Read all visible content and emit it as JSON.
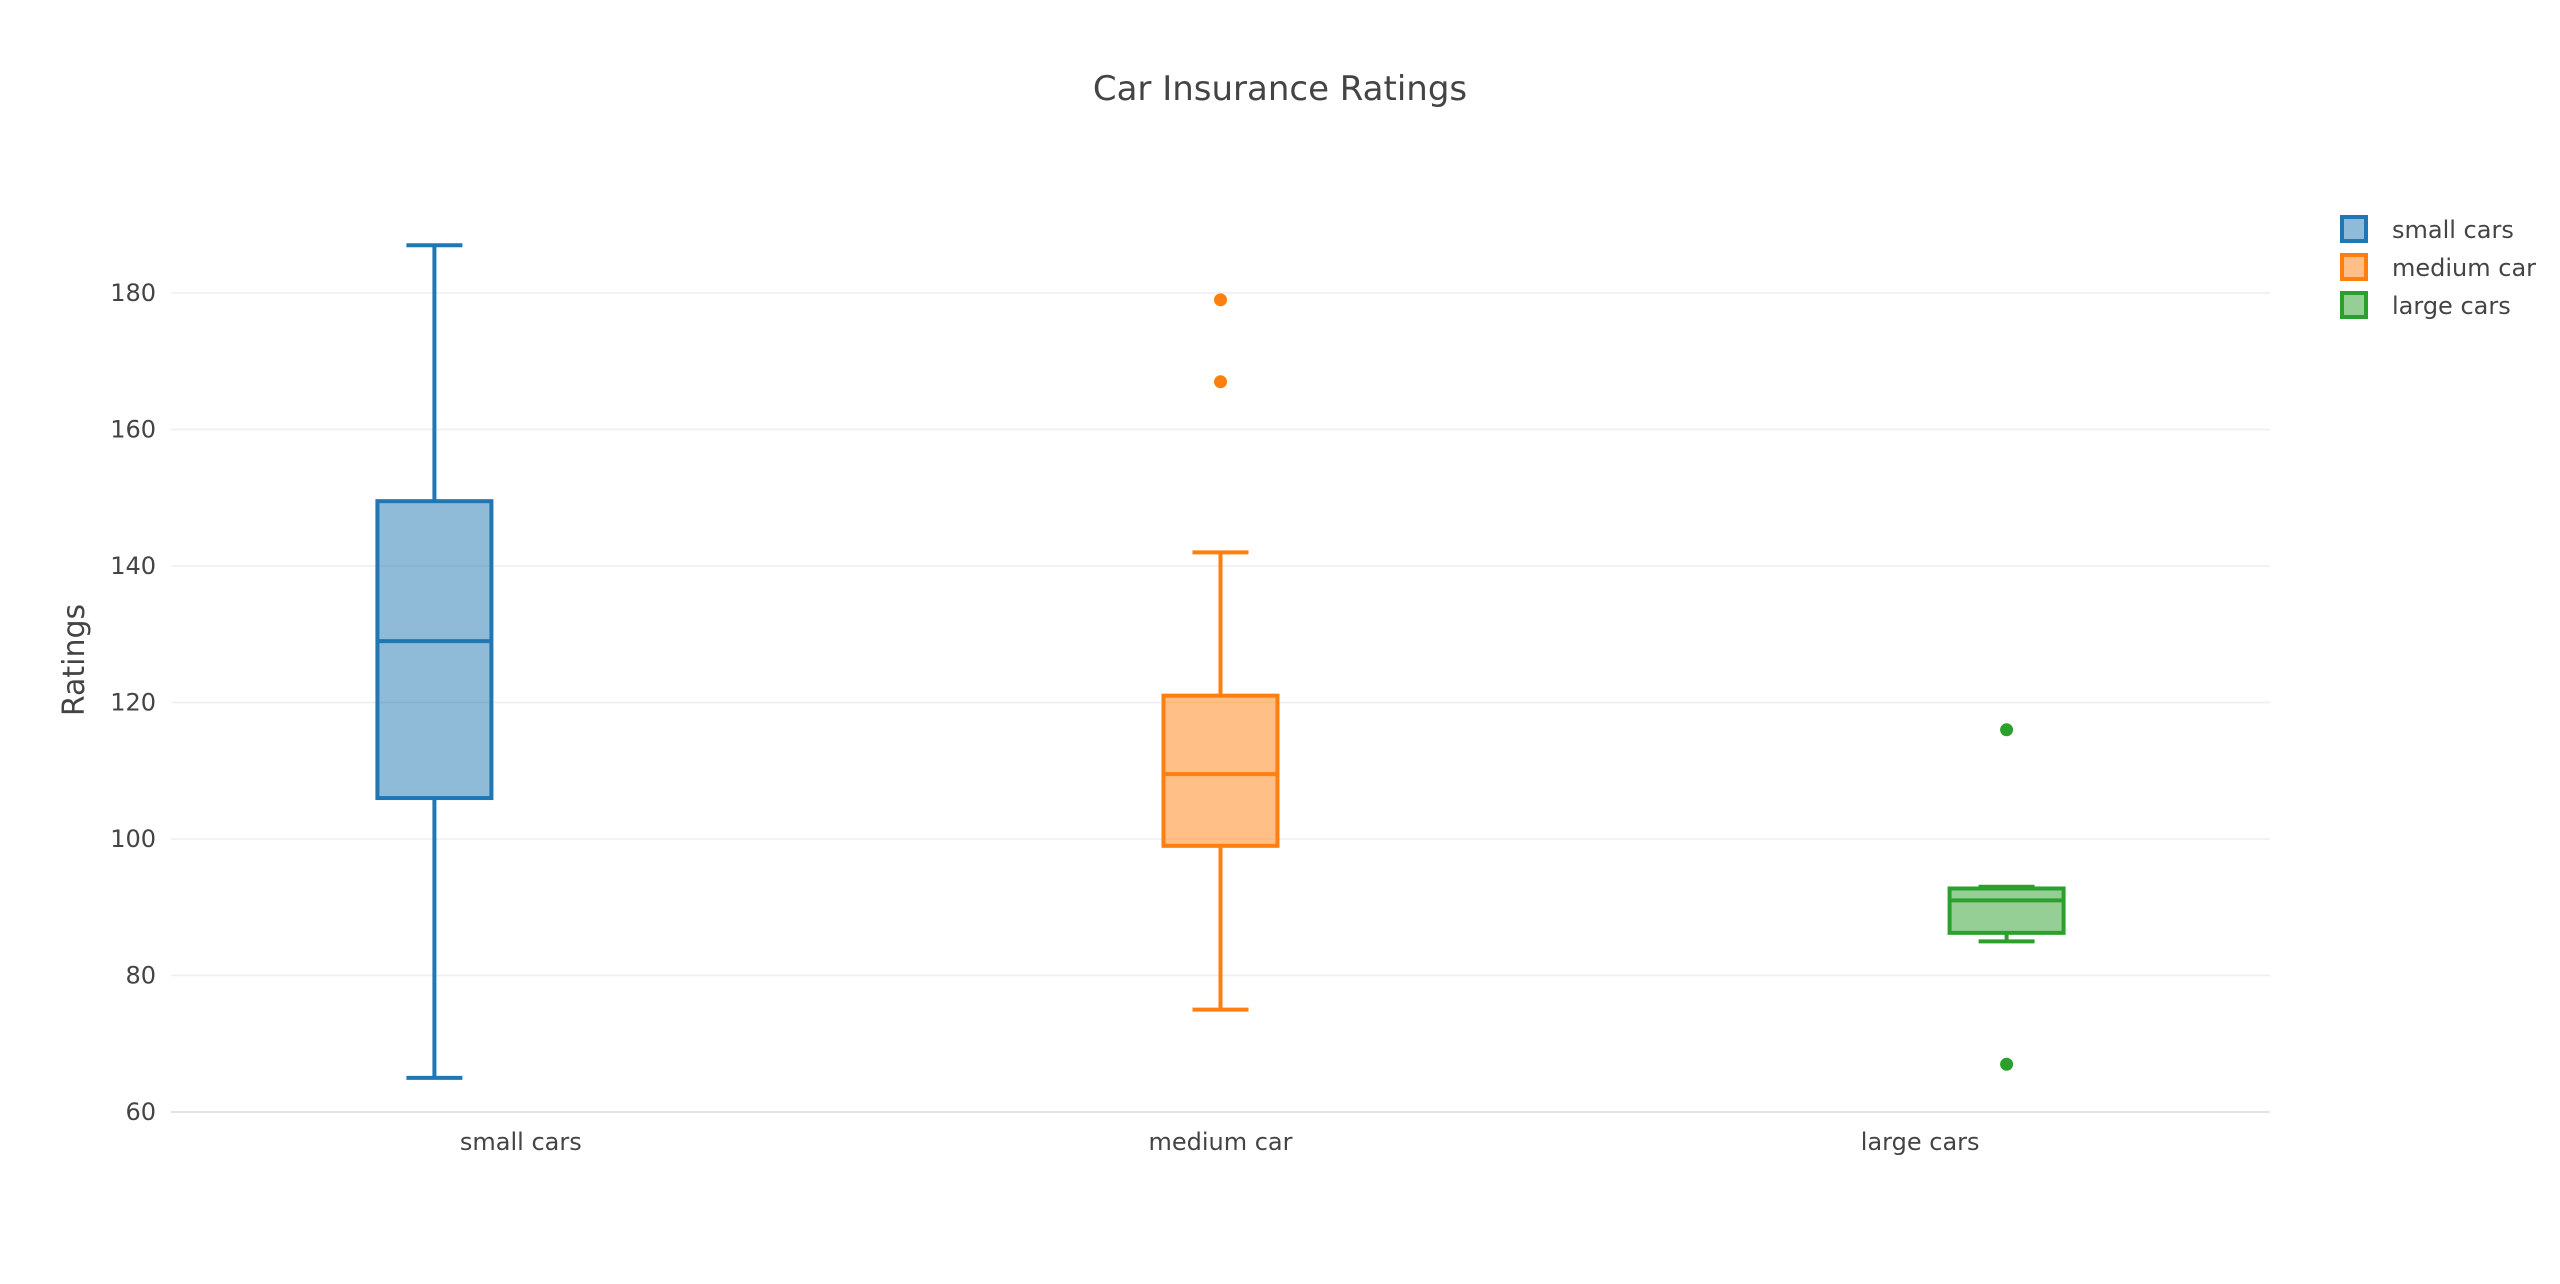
{
  "chart_data": {
    "type": "box",
    "title": "Car Insurance Ratings",
    "xlabel": "",
    "ylabel": "Ratings",
    "ylim": [
      60,
      190
    ],
    "yticks": [
      60,
      80,
      100,
      120,
      140,
      160,
      180
    ],
    "grid": true,
    "legend_position": "top-right",
    "categories": [
      "small cars",
      "medium car",
      "large cars"
    ],
    "series": [
      {
        "name": "small cars",
        "category": "small cars",
        "color": "#1f77b4",
        "fill": "rgba(31,119,180,0.5)",
        "min": 65,
        "q1": 106,
        "median": 129,
        "q3": 149.5,
        "max": 187,
        "outliers": []
      },
      {
        "name": "medium car",
        "category": "medium car",
        "color": "#ff7f0e",
        "fill": "rgba(255,127,14,0.5)",
        "min": 75,
        "q1": 99,
        "median": 109.5,
        "q3": 121,
        "max": 142,
        "outliers": [
          179,
          167
        ]
      },
      {
        "name": "large cars",
        "category": "large cars",
        "color": "#2ca02c",
        "fill": "rgba(44,160,44,0.5)",
        "min": 85,
        "q1": 86.25,
        "median": 91,
        "q3": 92.75,
        "max": 93,
        "outliers": [
          116,
          67
        ]
      }
    ]
  }
}
